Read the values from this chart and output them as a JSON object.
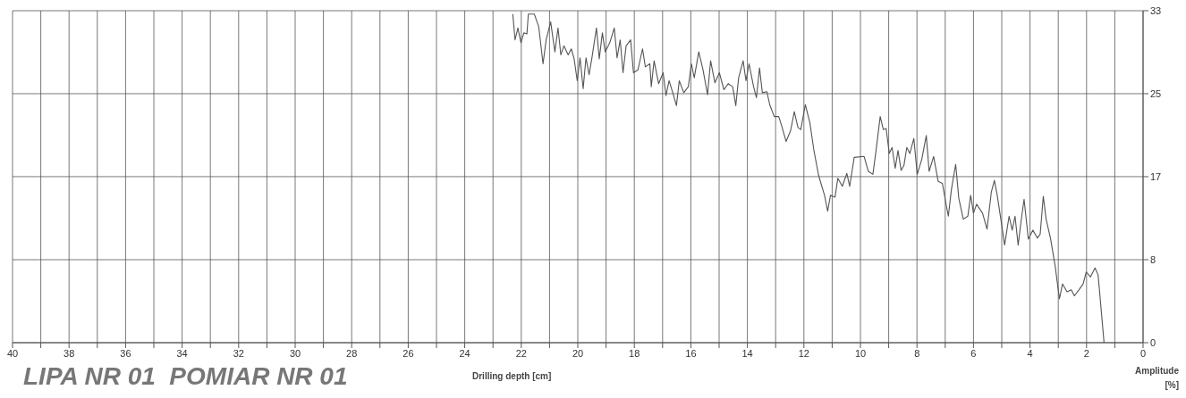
{
  "chart_data": {
    "type": "line",
    "title": "LIPA NR 01  POMIAR NR 01",
    "xlabel": "Drilling depth [cm]",
    "ylabel": "Amplitude [%]",
    "xlim": [
      40,
      0
    ],
    "xticks": [
      40,
      {
        "value": 39,
        "label": null
      },
      38,
      {
        "value": 37,
        "label": null
      },
      36,
      {
        "value": 35,
        "label": null
      },
      34,
      {
        "value": 33,
        "label": null
      },
      32,
      {
        "value": 31,
        "label": null
      },
      30,
      {
        "value": 29,
        "label": null
      },
      28,
      {
        "value": 27,
        "label": null
      },
      26,
      {
        "value": 25,
        "label": null
      },
      24,
      {
        "value": 23,
        "label": null
      },
      22,
      {
        "value": 21,
        "label": null
      },
      20,
      {
        "value": 19,
        "label": null
      },
      18,
      {
        "value": 17,
        "label": null
      },
      16,
      {
        "value": 15,
        "label": null
      },
      14,
      {
        "value": 13,
        "label": null
      },
      12,
      {
        "value": 11,
        "label": null
      },
      10,
      {
        "value": 9,
        "label": null
      },
      8,
      {
        "value": 7,
        "label": null
      },
      6,
      {
        "value": 5,
        "label": null
      },
      4,
      {
        "value": 3,
        "label": null
      },
      2,
      {
        "value": 1,
        "label": null
      },
      0
    ],
    "ylim": [
      0,
      33.33
    ],
    "yticks": [
      0,
      {
        "value": 8.33,
        "label": "8"
      },
      {
        "value": 16.67,
        "label": "17"
      },
      25,
      {
        "value": 33.33,
        "label": "33"
      }
    ],
    "grid": true,
    "legend": false,
    "marker": "none",
    "line_style": "solid",
    "series": [
      {
        "color": "#555555",
        "x": [
          22.3,
          22.22,
          22.12,
          22.01,
          21.91,
          21.8,
          21.75,
          21.54,
          21.38,
          21.23,
          21.12,
          20.96,
          20.81,
          20.7,
          20.6,
          20.49,
          20.34,
          20.23,
          20.13,
          20.02,
          19.92,
          19.81,
          19.71,
          19.6,
          19.5,
          19.34,
          19.24,
          19.13,
          19.03,
          18.87,
          18.71,
          18.61,
          18.5,
          18.4,
          18.29,
          18.13,
          18.03,
          17.87,
          17.71,
          17.61,
          17.45,
          17.4,
          17.3,
          17.14,
          16.98,
          16.88,
          16.77,
          16.61,
          16.51,
          16.41,
          16.25,
          16.09,
          15.98,
          15.88,
          15.72,
          15.57,
          15.41,
          15.3,
          15.15,
          14.99,
          14.83,
          14.68,
          14.52,
          14.41,
          14.31,
          14.15,
          14.05,
          13.94,
          13.78,
          13.68,
          13.57,
          13.47,
          13.31,
          13.21,
          13.05,
          12.89,
          12.79,
          12.63,
          12.47,
          12.34,
          12.21,
          12.11,
          11.95,
          11.79,
          11.64,
          11.48,
          11.27,
          11.16,
          11.06,
          10.9,
          10.8,
          10.64,
          10.48,
          10.38,
          10.22,
          9.87,
          9.72,
          9.56,
          9.46,
          9.3,
          9.19,
          9.09,
          8.98,
          8.88,
          8.77,
          8.67,
          8.56,
          8.46,
          8.36,
          8.25,
          8.11,
          7.99,
          7.83,
          7.67,
          7.57,
          7.41,
          7.25,
          7.1,
          6.99,
          6.89,
          6.78,
          6.63,
          6.52,
          6.36,
          6.2,
          6.1,
          6.0,
          5.89,
          5.68,
          5.52,
          5.37,
          5.26,
          5.16,
          5.0,
          4.9,
          4.74,
          4.63,
          4.53,
          4.42,
          4.32,
          4.21,
          4.06,
          3.9,
          3.74,
          3.64,
          3.53,
          3.43,
          3.27,
          3.11,
          2.96,
          2.85,
          2.69,
          2.54,
          2.43,
          2.27,
          2.12,
          2.01,
          1.86,
          1.7,
          1.59,
          1.38
        ],
        "values": [
          33.0,
          30.4,
          31.6,
          30.1,
          31.1,
          31.0,
          33.0,
          33.0,
          31.7,
          28.0,
          30.4,
          32.2,
          29.2,
          31.6,
          28.9,
          29.8,
          28.9,
          29.5,
          28.5,
          26.3,
          28.6,
          25.5,
          28.6,
          26.9,
          28.6,
          31.6,
          28.5,
          31.1,
          29.2,
          30.1,
          31.6,
          28.6,
          30.4,
          27.1,
          29.8,
          30.4,
          27.1,
          27.4,
          29.5,
          27.7,
          28.0,
          25.7,
          28.3,
          26.0,
          27.1,
          24.8,
          26.3,
          24.8,
          23.8,
          26.3,
          25.1,
          25.7,
          28.0,
          26.6,
          29.2,
          27.4,
          24.9,
          28.3,
          26.1,
          27.1,
          25.4,
          26.0,
          25.7,
          23.8,
          26.6,
          28.3,
          26.3,
          28.0,
          25.7,
          24.6,
          27.6,
          25.1,
          25.2,
          23.9,
          22.7,
          22.7,
          21.8,
          20.2,
          21.3,
          23.2,
          21.6,
          21.4,
          23.9,
          22.1,
          19.2,
          16.8,
          14.8,
          13.2,
          14.8,
          14.6,
          16.5,
          15.7,
          17.0,
          15.7,
          18.6,
          18.7,
          17.2,
          16.9,
          19.0,
          22.7,
          21.4,
          21.5,
          19.0,
          19.6,
          17.5,
          19.3,
          17.3,
          17.8,
          19.6,
          19.0,
          20.5,
          16.9,
          18.4,
          20.8,
          17.2,
          18.7,
          16.2,
          16.0,
          14.2,
          12.7,
          15.4,
          17.9,
          14.5,
          12.4,
          12.7,
          14.8,
          13.0,
          13.9,
          13.0,
          11.4,
          15.1,
          16.3,
          14.8,
          11.8,
          9.8,
          12.7,
          11.3,
          12.7,
          9.8,
          12.1,
          14.4,
          10.4,
          11.3,
          10.5,
          10.9,
          14.7,
          12.4,
          10.4,
          7.7,
          4.4,
          5.9,
          5.1,
          5.3,
          4.7,
          5.3,
          5.9,
          7.1,
          6.6,
          7.5,
          6.8,
          0
        ]
      }
    ]
  }
}
